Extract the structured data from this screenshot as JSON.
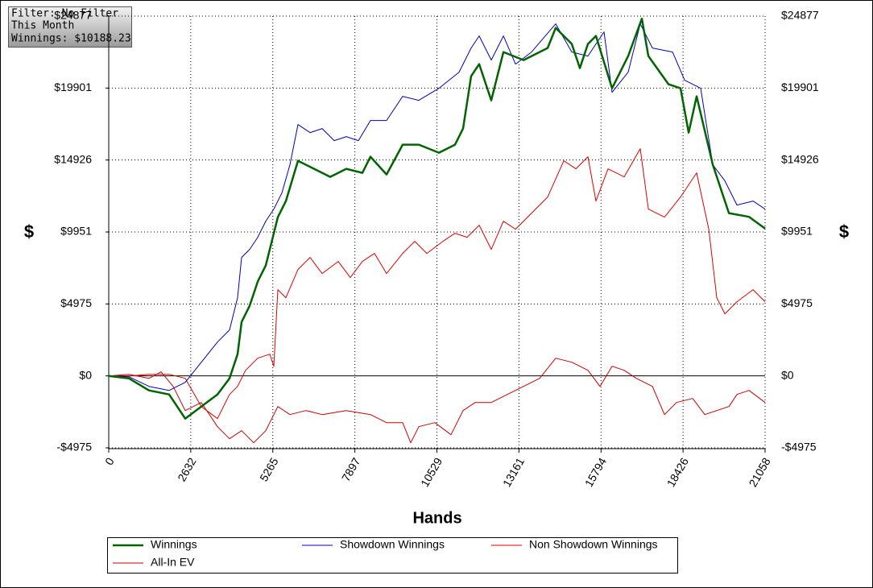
{
  "chart_data": {
    "type": "line",
    "annotations": [
      "Filter: No Filter",
      "This Month",
      "Winnings: $10188.23"
    ],
    "x_label": "Hands",
    "y_label": "$",
    "y2_label": "$",
    "xlim": [
      0,
      21058
    ],
    "xticks": [
      0,
      2632,
      5265,
      7897,
      10529,
      13161,
      15794,
      18426,
      21058
    ],
    "ylim": [
      -4975,
      24877
    ],
    "yticks": [
      {
        "value": -4975,
        "label": "-$4975"
      },
      {
        "value": 0,
        "label": "$0"
      },
      {
        "value": 4975,
        "label": "$4975"
      },
      {
        "value": 9951,
        "label": "$9951"
      },
      {
        "value": 14926,
        "label": "$14926"
      },
      {
        "value": 19901,
        "label": "$19901"
      },
      {
        "value": 24877,
        "label": "$24877"
      }
    ],
    "y2lim": [
      -4975,
      24877
    ],
    "y2ticks": [
      {
        "value": -4975,
        "label": "-$4975"
      },
      {
        "value": 0,
        "label": "$0"
      },
      {
        "value": 4975,
        "label": "$4975"
      },
      {
        "value": 9951,
        "label": "$9951"
      },
      {
        "value": 14926,
        "label": "$14926"
      },
      {
        "value": 19901,
        "label": "$19901"
      },
      {
        "value": 24877,
        "label": "$24877"
      }
    ],
    "grid": true,
    "series": [
      {
        "name": "Winnings",
        "color": "#006400",
        "linewidth": 2.5,
        "x": [
          0,
          646,
          1292,
          1938,
          2455,
          2972,
          3488,
          3876,
          4134,
          4264,
          4522,
          4780,
          5039,
          5297,
          5426,
          5685,
          6072,
          6589,
          7106,
          7623,
          8140,
          8398,
          8915,
          9432,
          9948,
          10594,
          11111,
          11370,
          11628,
          11886,
          12274,
          12662,
          13308,
          14083,
          14341,
          14858,
          15116,
          15374,
          15632,
          16149,
          16666,
          17106,
          17313,
          17959,
          18346,
          18605,
          18863,
          19380,
          19897,
          20543,
          21058
        ],
        "values": [
          0,
          -167,
          -1003,
          -1281,
          -2952,
          -2117,
          -1281,
          -167,
          1504,
          3732,
          4847,
          6518,
          7632,
          9860,
          10975,
          12089,
          14874,
          14317,
          13760,
          14317,
          14038,
          15153,
          13925,
          15988,
          15988,
          15431,
          15988,
          17102,
          20723,
          21558,
          19052,
          22394,
          21837,
          22673,
          24065,
          22952,
          21280,
          22952,
          23509,
          19888,
          22116,
          24700,
          22116,
          20166,
          19888,
          16824,
          19331,
          14597,
          11256,
          10999,
          10188
        ]
      },
      {
        "name": "Showdown Winnings",
        "color": "#0000c0",
        "linewidth": 1,
        "x": [
          0,
          646,
          1292,
          1938,
          2455,
          2972,
          3488,
          3876,
          4134,
          4264,
          4522,
          4780,
          5039,
          5297,
          5555,
          5814,
          6072,
          6460,
          6848,
          7235,
          7623,
          8010,
          8398,
          8915,
          9432,
          9948,
          10594,
          11240,
          11628,
          11886,
          12274,
          12662,
          13050,
          13566,
          14341,
          14858,
          15374,
          15891,
          16149,
          16666,
          17054,
          17442,
          18088,
          18476,
          18992,
          19380,
          19768,
          20155,
          20672,
          21058
        ],
        "values": [
          0,
          -56,
          -724,
          -1003,
          -446,
          947,
          2340,
          3176,
          5404,
          8189,
          8747,
          9582,
          10696,
          11532,
          12646,
          14596,
          17381,
          16824,
          17102,
          16267,
          16545,
          16267,
          17660,
          17660,
          19331,
          19052,
          19888,
          21002,
          22673,
          23509,
          21837,
          23509,
          21558,
          22394,
          24344,
          22394,
          22116,
          23787,
          19609,
          21002,
          24344,
          22673,
          22394,
          20445,
          19888,
          14597,
          13483,
          11811,
          12089,
          11532
        ]
      },
      {
        "name": "Non Showdown Winnings",
        "color": "#e00000",
        "linewidth": 1,
        "x": [
          0,
          646,
          1292,
          1938,
          2455,
          2972,
          3488,
          3876,
          4134,
          4393,
          4780,
          5168,
          5297,
          5426,
          5685,
          6072,
          6460,
          6848,
          7365,
          7752,
          8140,
          8527,
          8915,
          9432,
          9819,
          10207,
          10723,
          11111,
          11499,
          11886,
          12274,
          12662,
          13050,
          13566,
          14083,
          14600,
          14988,
          15374,
          15632,
          16020,
          16537,
          17054,
          17313,
          17830,
          18346,
          18863,
          19251,
          19509,
          19768,
          20155,
          20672,
          21058
        ],
        "values": [
          0,
          0,
          111,
          111,
          -167,
          -2117,
          -2952,
          -1281,
          -724,
          390,
          1226,
          1504,
          669,
          5961,
          5404,
          7354,
          8189,
          7075,
          7910,
          6796,
          7910,
          8468,
          7075,
          8468,
          9304,
          8468,
          9304,
          9860,
          9582,
          10417,
          8747,
          10696,
          10139,
          11253,
          12367,
          14874,
          14317,
          15153,
          12089,
          14317,
          13760,
          15710,
          11532,
          10975,
          12367,
          14038,
          10139,
          5404,
          4290,
          5126,
          5961,
          5126
        ]
      },
      {
        "name": "All-In EV",
        "color": "#cc0000",
        "linewidth": 1,
        "x": [
          0,
          646,
          1292,
          1680,
          2067,
          2455,
          2972,
          3488,
          3876,
          4264,
          4651,
          5039,
          5426,
          5814,
          6330,
          6848,
          7623,
          8398,
          8915,
          9432,
          9690,
          9948,
          10465,
          10981,
          11370,
          11757,
          12274,
          12791,
          13308,
          13825,
          14341,
          14858,
          15374,
          15762,
          16149,
          16537,
          16924,
          17442,
          17830,
          18217,
          18734,
          19122,
          19509,
          19897,
          20155,
          20543,
          21058
        ],
        "values": [
          0,
          111,
          -167,
          279,
          -724,
          -2396,
          -1838,
          -3509,
          -4345,
          -3788,
          -4623,
          -3788,
          -2117,
          -2674,
          -2396,
          -2674,
          -2396,
          -2674,
          -3231,
          -3231,
          -4623,
          -3509,
          -3231,
          -4067,
          -2396,
          -1838,
          -1838,
          -1281,
          -724,
          -167,
          1226,
          947,
          390,
          -724,
          669,
          390,
          -167,
          -724,
          -2674,
          -1838,
          -1560,
          -2674,
          -2396,
          -2117,
          -1281,
          -1003,
          -1838
        ]
      }
    ]
  }
}
